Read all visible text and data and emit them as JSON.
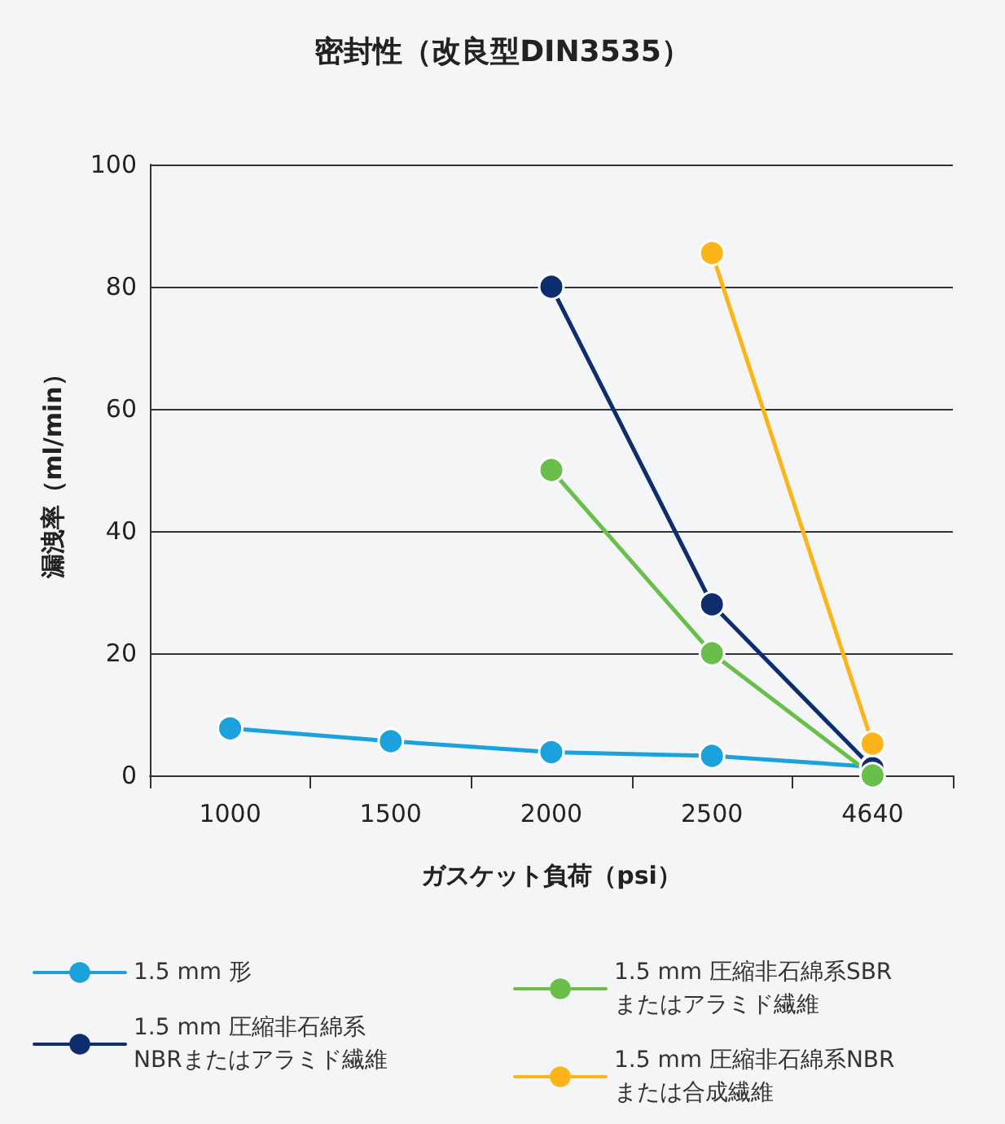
{
  "chart_data": {
    "type": "line",
    "title": "密封性（改良型DIN3535）",
    "xlabel": "ガスケット負荷（psi）",
    "ylabel": "漏洩率（ml/min）",
    "categories": [
      "1000",
      "1500",
      "2000",
      "2500",
      "4640"
    ],
    "series": [
      {
        "name": "1.5 mm 形",
        "color": "#1ba1dc",
        "values": [
          7.7,
          5.6,
          3.8,
          3.2,
          1.4
        ]
      },
      {
        "name": "1.5 mm 圧縮非石綿系\nNBRまたはアラミド繊維",
        "color": "#0d2d6c",
        "values": [
          null,
          null,
          80,
          28,
          1.2
        ]
      },
      {
        "name": "1.5 mm 圧縮非石綿系SBR\nまたはアラミド繊維",
        "color": "#6abf4b",
        "values": [
          null,
          null,
          50,
          20,
          0
        ]
      },
      {
        "name": "1.5 mm 圧縮非石綿系NBR\nまたは合成繊維",
        "color": "#fbb51a",
        "values": [
          null,
          null,
          null,
          85.5,
          5.2
        ]
      }
    ],
    "ylim": [
      0,
      100
    ],
    "yticks": [
      0,
      20,
      40,
      60,
      80,
      100
    ],
    "grid": "y",
    "legend": "bottom",
    "marker": "circle",
    "line_style": "solid"
  }
}
